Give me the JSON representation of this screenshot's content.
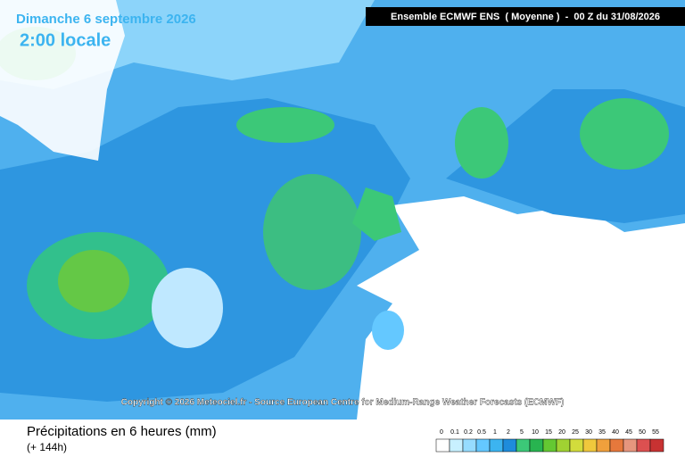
{
  "header": {
    "date": "Dimanche 6 septembre 2026",
    "time": "2:00 locale",
    "model": "Ensemble ECMWF ENS  ( Moyenne )  -  00 Z du 31/08/2026"
  },
  "copyright": "Copyright © 2026 Meteociel.fr - Source European Centre for Medium-Range Weather Forecasts (ECMWF)",
  "footer": {
    "title": "Précipitations en 6 heures (mm)",
    "lead": "(+ 144h)"
  },
  "legend": {
    "labels": [
      "0",
      "0.1",
      "0.2",
      "0.5",
      "1",
      "2",
      "5",
      "10",
      "15",
      "20",
      "25",
      "30",
      "35",
      "40",
      "45",
      "50",
      "55"
    ],
    "colors": [
      "#ffffff",
      "#c8f0ff",
      "#96dcff",
      "#64c8ff",
      "#3cb4f0",
      "#1e8cdc",
      "#3cc878",
      "#28b450",
      "#64c832",
      "#a0d232",
      "#d2dc3c",
      "#f0c83c",
      "#f0a03c",
      "#e6783c",
      "#e6967e",
      "#dc5050",
      "#c83232"
    ]
  }
}
